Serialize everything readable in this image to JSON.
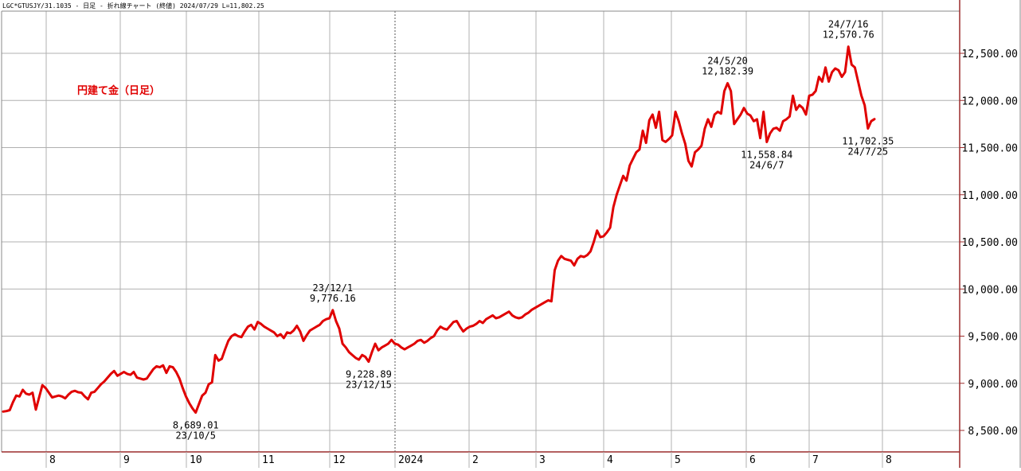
{
  "header": {
    "text": "LGC*GTUSJY/31.1035 - 日足 - 折れ線チャート (終値) 2024/07/29 L=11,802.25"
  },
  "chart_title": "円建て金（日足）",
  "colors": {
    "line": "#e00000",
    "title": "#e00000",
    "grid": "#b0b0b0",
    "border": "#9b2b2b",
    "text": "#000000"
  },
  "chart_data": {
    "type": "line",
    "title": "円建て金（日足）",
    "x_tick_labels": [
      "8",
      "9",
      "10",
      "11",
      "12",
      "2024",
      "2",
      "3",
      "4",
      "5",
      "6",
      "7",
      "8"
    ],
    "y_tick_labels": [
      "8,500.00",
      "9,000.00",
      "9,500.00",
      "10,000.00",
      "10,500.00",
      "11,000.00",
      "11,500.00",
      "12,000.00",
      "12,500.00"
    ],
    "y_ticks": [
      8500,
      9000,
      9500,
      10000,
      10500,
      11000,
      11500,
      12000,
      12500
    ],
    "ylim": [
      8175,
      12900
    ],
    "grid": true,
    "divider_label": "2024",
    "series": [
      {
        "values": [
          8700,
          8705,
          8715,
          8800,
          8870,
          8860,
          8930,
          8890,
          8880,
          8900,
          8720,
          8850,
          8980,
          8950,
          8900,
          8850,
          8860,
          8870,
          8860,
          8840,
          8880,
          8910,
          8920,
          8905,
          8900,
          8860,
          8830,
          8900,
          8910,
          8950,
          8990,
          9020,
          9060,
          9100,
          9130,
          9080,
          9100,
          9120,
          9100,
          9090,
          9120,
          9060,
          9050,
          9040,
          9050,
          9100,
          9150,
          9180,
          9170,
          9190,
          9110,
          9180,
          9170,
          9120,
          9050,
          8950,
          8860,
          8790,
          8735,
          8689.01,
          8780,
          8870,
          8900,
          8990,
          9010,
          9300,
          9240,
          9260,
          9360,
          9450,
          9500,
          9520,
          9500,
          9490,
          9550,
          9600,
          9620,
          9570,
          9650,
          9630,
          9600,
          9580,
          9560,
          9540,
          9500,
          9520,
          9480,
          9540,
          9530,
          9560,
          9610,
          9550,
          9450,
          9510,
          9560,
          9580,
          9600,
          9620,
          9660,
          9680,
          9690,
          9776.16,
          9660,
          9580,
          9420,
          9380,
          9330,
          9300,
          9270,
          9250,
          9300,
          9280,
          9228.89,
          9330,
          9420,
          9350,
          9380,
          9400,
          9420,
          9460,
          9420,
          9410,
          9380,
          9360,
          9380,
          9400,
          9420,
          9450,
          9460,
          9430,
          9450,
          9480,
          9500,
          9560,
          9600,
          9580,
          9570,
          9610,
          9650,
          9660,
          9600,
          9550,
          9580,
          9600,
          9610,
          9630,
          9660,
          9640,
          9680,
          9700,
          9720,
          9690,
          9700,
          9720,
          9740,
          9760,
          9720,
          9700,
          9690,
          9700,
          9730,
          9750,
          9780,
          9800,
          9820,
          9840,
          9860,
          9880,
          9870,
          10200,
          10300,
          10350,
          10320,
          10310,
          10300,
          10250,
          10320,
          10350,
          10340,
          10360,
          10400,
          10500,
          10620,
          10550,
          10560,
          10600,
          10650,
          10870,
          11000,
          11100,
          11200,
          11150,
          11310,
          11380,
          11450,
          11480,
          11680,
          11550,
          11790,
          11850,
          11710,
          11880,
          11580,
          11560,
          11590,
          11630,
          11880,
          11780,
          11650,
          11540,
          11360,
          11300,
          11450,
          11480,
          11520,
          11700,
          11800,
          11720,
          11850,
          11880,
          11860,
          12100,
          12182.39,
          12100,
          11750,
          11800,
          11850,
          11920,
          11860,
          11840,
          11780,
          11800,
          11600,
          11880,
          11558.84,
          11650,
          11700,
          11710,
          11680,
          11780,
          11800,
          11830,
          12050,
          11900,
          11950,
          11920,
          11850,
          12050,
          12060,
          12100,
          12250,
          12200,
          12350,
          12200,
          12300,
          12340,
          12320,
          12250,
          12300,
          12570.76,
          12380,
          12350,
          12200,
          12050,
          11950,
          11702.35,
          11780,
          11802.25
        ]
      }
    ],
    "annotations": [
      {
        "date": "23/10/5",
        "value_label": "8,689.01"
      },
      {
        "date": "23/12/1",
        "value_label": "9,776.16"
      },
      {
        "date": "23/12/15",
        "value_label": "9,228.89"
      },
      {
        "date": "24/5/20",
        "value_label": "12,182.39"
      },
      {
        "date": "24/6/7",
        "value_label": "11,558.84"
      },
      {
        "date": "24/7/16",
        "value_label": "12,570.76"
      },
      {
        "date": "24/7/25",
        "value_label": "11,702.35"
      }
    ]
  }
}
